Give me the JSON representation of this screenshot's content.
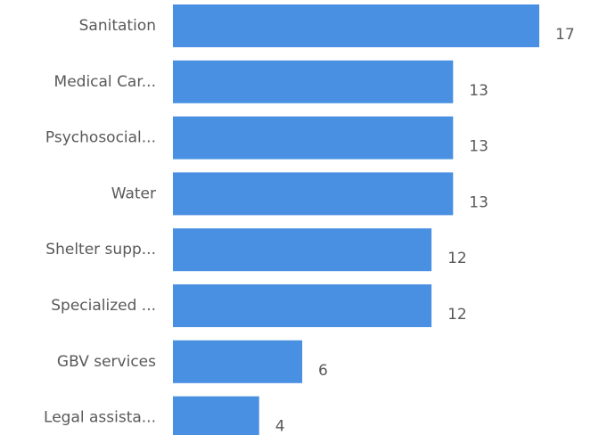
{
  "chart_data": {
    "type": "bar",
    "orientation": "horizontal",
    "categories": [
      "Sanitation",
      "Medical Car...",
      "Psychosocial...",
      "Water",
      "Shelter supp...",
      "Specialized ...",
      "GBV services",
      "Legal assista..."
    ],
    "values": [
      17,
      13,
      13,
      13,
      12,
      12,
      6,
      4
    ],
    "bar_color": "#4a90e2",
    "xlim": [
      0,
      17
    ],
    "grid": false,
    "data_labels": true
  }
}
